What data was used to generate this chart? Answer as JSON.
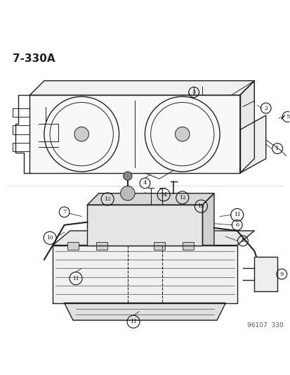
{
  "title": "7-330A",
  "footer": "96107  330",
  "bg_color": "#ffffff",
  "line_color": "#222222",
  "fig_width": 4.14,
  "fig_height": 5.33,
  "dpi": 100
}
